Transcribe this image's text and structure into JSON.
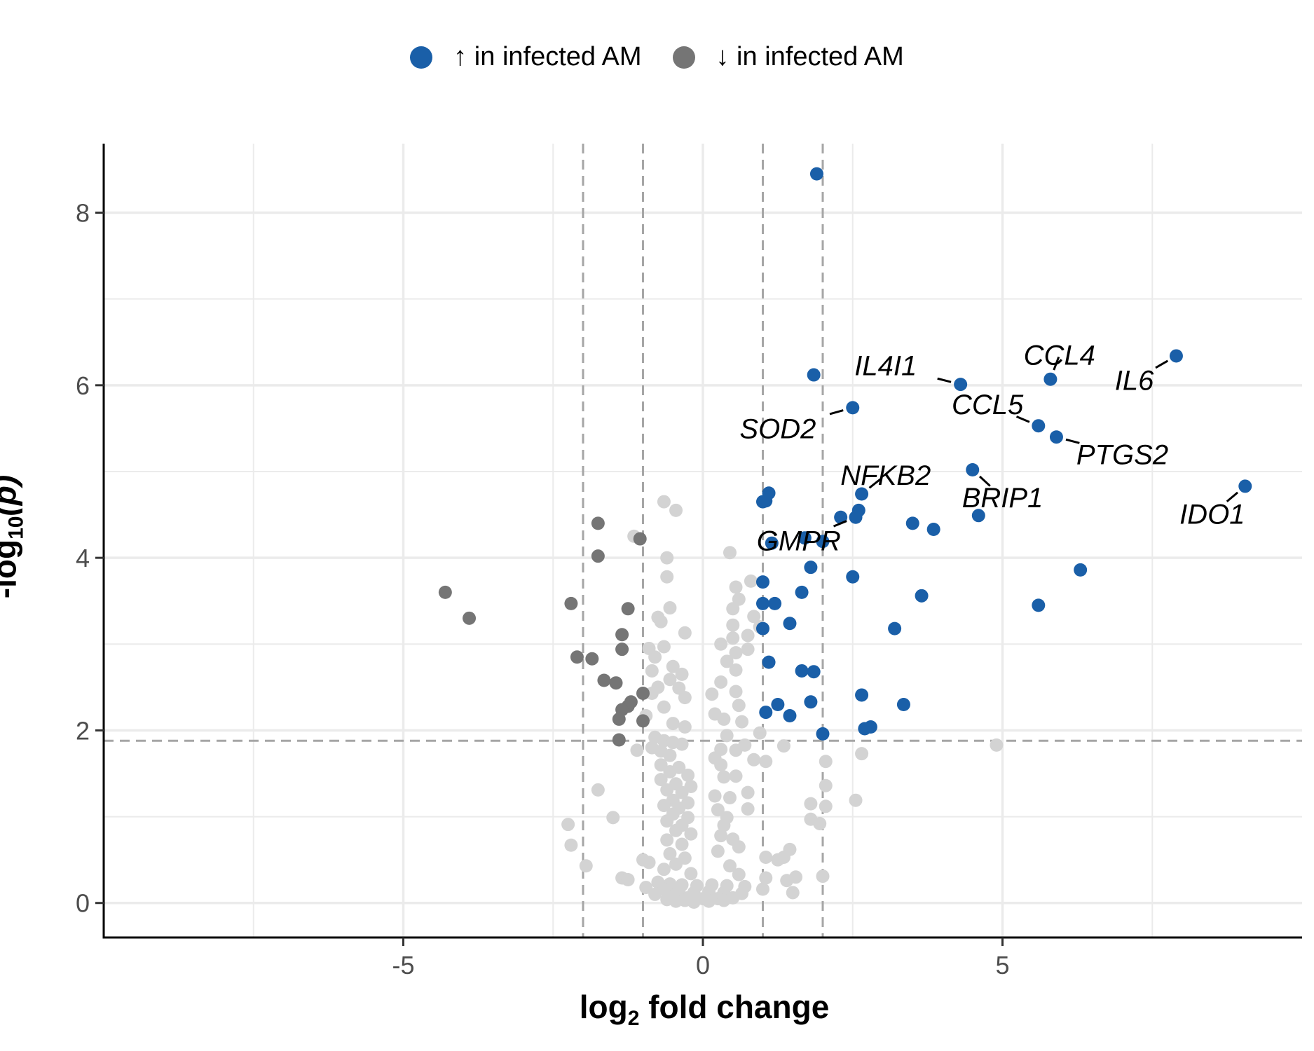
{
  "chart_data": {
    "type": "scatter",
    "title": "",
    "xlabel_main": "log",
    "xlabel_sub": "2",
    "xlabel_rest": " fold change",
    "ylabel_main": "-log",
    "ylabel_sub": "10",
    "ylabel_rest": "(p)",
    "xlim": [
      -10,
      10
    ],
    "ylim": [
      -0.4,
      8.8
    ],
    "xticks": [
      -5,
      0,
      5
    ],
    "yticks": [
      0,
      2,
      4,
      6,
      8
    ],
    "grid": true,
    "legend_position": "top",
    "thresholds": {
      "x": [
        -2,
        -1,
        1,
        2
      ],
      "y": 1.88
    },
    "colors": {
      "up": "#1a5fa8",
      "down": "#757575",
      "ns": "#d3d3d3",
      "grid": "#ebebeb",
      "threshold": "#a6a6a6"
    },
    "series": [
      {
        "name": "↑ in infected AM",
        "color": "#1a5fa8",
        "points": [
          [
            1.9,
            8.45
          ],
          [
            7.9,
            6.34
          ],
          [
            5.8,
            6.07
          ],
          [
            4.3,
            6.01
          ],
          [
            1.85,
            6.12
          ],
          [
            2.5,
            5.74
          ],
          [
            5.6,
            5.53
          ],
          [
            5.9,
            5.4
          ],
          [
            4.5,
            5.02
          ],
          [
            9.05,
            4.83
          ],
          [
            2.65,
            4.74
          ],
          [
            1.1,
            4.75
          ],
          [
            1.05,
            4.66
          ],
          [
            1.0,
            4.65
          ],
          [
            2.6,
            4.55
          ],
          [
            2.55,
            4.47
          ],
          [
            2.3,
            4.47
          ],
          [
            4.6,
            4.49
          ],
          [
            3.5,
            4.4
          ],
          [
            3.85,
            4.33
          ],
          [
            1.7,
            4.23
          ],
          [
            2.0,
            4.19
          ],
          [
            1.15,
            4.17
          ],
          [
            1.8,
            3.89
          ],
          [
            6.3,
            3.86
          ],
          [
            2.5,
            3.78
          ],
          [
            1.0,
            3.72
          ],
          [
            1.65,
            3.6
          ],
          [
            3.65,
            3.56
          ],
          [
            5.6,
            3.45
          ],
          [
            1.0,
            3.47
          ],
          [
            1.2,
            3.47
          ],
          [
            1.45,
            3.24
          ],
          [
            1.0,
            3.18
          ],
          [
            3.2,
            3.18
          ],
          [
            1.1,
            2.79
          ],
          [
            1.65,
            2.69
          ],
          [
            1.85,
            2.68
          ],
          [
            2.65,
            2.41
          ],
          [
            1.8,
            2.33
          ],
          [
            1.25,
            2.3
          ],
          [
            3.35,
            2.3
          ],
          [
            1.05,
            2.21
          ],
          [
            1.45,
            2.17
          ],
          [
            2.8,
            2.04
          ],
          [
            2.7,
            2.02
          ],
          [
            2.0,
            1.96
          ]
        ]
      },
      {
        "name": "↓ in infected AM",
        "color": "#757575",
        "points": [
          [
            -4.3,
            3.6
          ],
          [
            -3.9,
            3.3
          ],
          [
            -1.75,
            4.4
          ],
          [
            -1.05,
            4.22
          ],
          [
            -1.75,
            4.02
          ],
          [
            -2.2,
            3.47
          ],
          [
            -1.25,
            3.41
          ],
          [
            -1.35,
            3.11
          ],
          [
            -1.35,
            2.94
          ],
          [
            -1.85,
            2.83
          ],
          [
            -2.1,
            2.85
          ],
          [
            -1.65,
            2.58
          ],
          [
            -1.45,
            2.55
          ],
          [
            -1.0,
            2.43
          ],
          [
            -1.2,
            2.33
          ],
          [
            -1.25,
            2.28
          ],
          [
            -1.35,
            2.24
          ],
          [
            -1.4,
            2.13
          ],
          [
            -1.0,
            2.11
          ],
          [
            -1.4,
            1.89
          ]
        ]
      },
      {
        "name": "",
        "color": "#d3d3d3",
        "points": [
          [
            -0.65,
            4.65
          ],
          [
            -0.45,
            4.55
          ],
          [
            -1.15,
            4.25
          ],
          [
            0.45,
            4.06
          ],
          [
            -0.6,
            4.0
          ],
          [
            -0.6,
            3.78
          ],
          [
            0.8,
            3.73
          ],
          [
            0.55,
            3.66
          ],
          [
            0.6,
            3.52
          ],
          [
            -0.55,
            3.42
          ],
          [
            0.5,
            3.41
          ],
          [
            0.85,
            3.32
          ],
          [
            -0.75,
            3.31
          ],
          [
            0.5,
            3.22
          ],
          [
            -0.7,
            3.26
          ],
          [
            0.95,
            3.2
          ],
          [
            0.75,
            3.1
          ],
          [
            -0.3,
            3.13
          ],
          [
            0.5,
            3.07
          ],
          [
            0.3,
            3.0
          ],
          [
            -0.65,
            2.97
          ],
          [
            -0.9,
            2.95
          ],
          [
            0.55,
            2.9
          ],
          [
            0.75,
            2.94
          ],
          [
            -0.8,
            2.85
          ],
          [
            0.4,
            2.8
          ],
          [
            -0.5,
            2.74
          ],
          [
            -0.85,
            2.69
          ],
          [
            0.55,
            2.7
          ],
          [
            -0.35,
            2.65
          ],
          [
            -0.55,
            2.59
          ],
          [
            0.3,
            2.56
          ],
          [
            -0.75,
            2.5
          ],
          [
            -0.4,
            2.49
          ],
          [
            0.55,
            2.45
          ],
          [
            -0.85,
            2.43
          ],
          [
            -0.3,
            2.38
          ],
          [
            0.15,
            2.42
          ],
          [
            0.6,
            2.29
          ],
          [
            -0.65,
            2.27
          ],
          [
            0.2,
            2.19
          ],
          [
            -0.95,
            2.17
          ],
          [
            0.35,
            2.13
          ],
          [
            0.65,
            2.1
          ],
          [
            -0.5,
            2.08
          ],
          [
            -0.3,
            2.04
          ],
          [
            0.95,
            1.97
          ],
          [
            0.4,
            1.94
          ],
          [
            -0.8,
            1.92
          ],
          [
            -0.65,
            1.88
          ],
          [
            -0.5,
            1.86
          ],
          [
            -0.35,
            1.84
          ],
          [
            0.7,
            1.83
          ],
          [
            1.35,
            1.82
          ],
          [
            4.9,
            1.83
          ],
          [
            -0.85,
            1.8
          ],
          [
            -0.7,
            1.76
          ],
          [
            0.3,
            1.78
          ],
          [
            0.55,
            1.77
          ],
          [
            -1.1,
            1.77
          ],
          [
            -0.55,
            1.71
          ],
          [
            0.2,
            1.68
          ],
          [
            0.85,
            1.66
          ],
          [
            1.05,
            1.64
          ],
          [
            2.05,
            1.64
          ],
          [
            2.65,
            1.73
          ],
          [
            -0.7,
            1.6
          ],
          [
            -0.4,
            1.57
          ],
          [
            0.3,
            1.6
          ],
          [
            -0.55,
            1.52
          ],
          [
            -0.25,
            1.48
          ],
          [
            0.35,
            1.46
          ],
          [
            0.55,
            1.47
          ],
          [
            -0.7,
            1.43
          ],
          [
            -0.45,
            1.38
          ],
          [
            -0.2,
            1.35
          ],
          [
            -0.6,
            1.31
          ],
          [
            -0.35,
            1.28
          ],
          [
            -1.75,
            1.31
          ],
          [
            2.05,
            1.36
          ],
          [
            0.2,
            1.24
          ],
          [
            0.45,
            1.22
          ],
          [
            0.75,
            1.28
          ],
          [
            -0.5,
            1.19
          ],
          [
            -0.25,
            1.16
          ],
          [
            2.55,
            1.19
          ],
          [
            -0.65,
            1.13
          ],
          [
            -0.4,
            1.1
          ],
          [
            1.8,
            1.15
          ],
          [
            2.05,
            1.12
          ],
          [
            0.25,
            1.08
          ],
          [
            0.75,
            1.09
          ],
          [
            -0.5,
            1.03
          ],
          [
            -0.25,
            0.99
          ],
          [
            0.4,
            0.99
          ],
          [
            -1.5,
            0.99
          ],
          [
            1.8,
            0.97
          ],
          [
            1.95,
            0.92
          ],
          [
            -0.6,
            0.95
          ],
          [
            -0.35,
            0.9
          ],
          [
            -2.25,
            0.91
          ],
          [
            0.35,
            0.9
          ],
          [
            -0.45,
            0.84
          ],
          [
            -0.2,
            0.8
          ],
          [
            0.3,
            0.78
          ],
          [
            0.5,
            0.74
          ],
          [
            -0.6,
            0.73
          ],
          [
            -0.35,
            0.68
          ],
          [
            -2.2,
            0.67
          ],
          [
            0.6,
            0.65
          ],
          [
            0.25,
            0.6
          ],
          [
            1.45,
            0.62
          ],
          [
            1.35,
            0.53
          ],
          [
            1.05,
            0.53
          ],
          [
            1.25,
            0.5
          ],
          [
            -0.55,
            0.57
          ],
          [
            -0.3,
            0.52
          ],
          [
            -1.0,
            0.5
          ],
          [
            -0.9,
            0.47
          ],
          [
            -0.45,
            0.45
          ],
          [
            0.45,
            0.43
          ],
          [
            -1.95,
            0.43
          ],
          [
            -0.65,
            0.39
          ],
          [
            -0.2,
            0.34
          ],
          [
            0.6,
            0.33
          ],
          [
            1.55,
            0.3
          ],
          [
            2.0,
            0.31
          ],
          [
            -1.35,
            0.29
          ],
          [
            -1.25,
            0.27
          ],
          [
            1.05,
            0.29
          ],
          [
            1.4,
            0.26
          ],
          [
            -0.75,
            0.24
          ],
          [
            -0.55,
            0.22
          ],
          [
            -0.35,
            0.21
          ],
          [
            -0.1,
            0.2
          ],
          [
            0.15,
            0.21
          ],
          [
            0.4,
            0.2
          ],
          [
            0.7,
            0.19
          ],
          [
            -0.95,
            0.18
          ],
          [
            -0.65,
            0.16
          ],
          [
            -0.4,
            0.14
          ],
          [
            -0.15,
            0.12
          ],
          [
            0.1,
            0.13
          ],
          [
            0.35,
            0.12
          ],
          [
            0.65,
            0.11
          ],
          [
            1.0,
            0.16
          ],
          [
            1.5,
            0.12
          ],
          [
            -0.8,
            0.1
          ],
          [
            -0.5,
            0.08
          ],
          [
            -0.25,
            0.06
          ],
          [
            0.0,
            0.05
          ],
          [
            0.25,
            0.05
          ],
          [
            0.5,
            0.06
          ],
          [
            -0.6,
            0.04
          ],
          [
            -0.3,
            0.03
          ],
          [
            0.1,
            0.02
          ],
          [
            0.35,
            0.03
          ],
          [
            -0.15,
            0.01
          ],
          [
            -0.45,
            0.02
          ]
        ]
      }
    ],
    "annotations": [
      {
        "label": "CCL4",
        "x": 5.8,
        "y": 6.07,
        "tx": 5.95,
        "ty": 6.35
      },
      {
        "label": "IL4I1",
        "x": 4.3,
        "y": 6.01,
        "tx": 3.05,
        "ty": 6.23
      },
      {
        "label": "IL6",
        "x": 7.9,
        "y": 6.34,
        "tx": 7.2,
        "ty": 6.06
      },
      {
        "label": "CCL5",
        "x": 5.6,
        "y": 5.53,
        "tx": 4.75,
        "ty": 5.78
      },
      {
        "label": "SOD2",
        "x": 2.5,
        "y": 5.74,
        "tx": 1.25,
        "ty": 5.5
      },
      {
        "label": "PTGS2",
        "x": 5.9,
        "y": 5.4,
        "tx": 7.0,
        "ty": 5.2
      },
      {
        "label": "NFKB2",
        "x": 2.65,
        "y": 4.74,
        "tx": 3.05,
        "ty": 4.96
      },
      {
        "label": "BRIP1",
        "x": 4.5,
        "y": 5.02,
        "tx": 5.0,
        "ty": 4.7
      },
      {
        "label": "IDO1",
        "x": 9.05,
        "y": 4.83,
        "tx": 8.5,
        "ty": 4.51
      },
      {
        "label": "GMPR",
        "x": 2.55,
        "y": 4.47,
        "tx": 1.6,
        "ty": 4.2
      }
    ]
  }
}
